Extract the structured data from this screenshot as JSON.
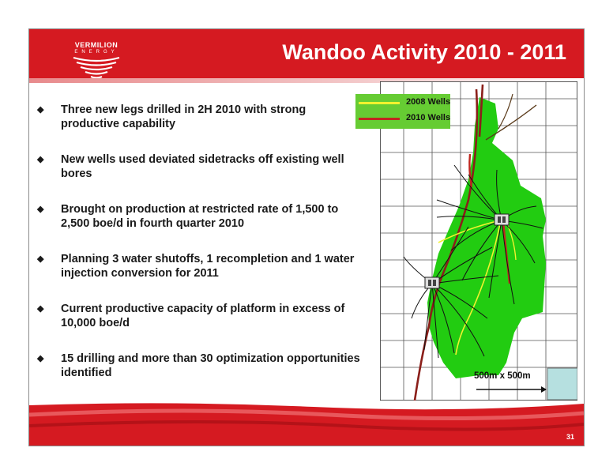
{
  "header": {
    "title": "Wandoo Activity 2010 - 2011",
    "logo_name": "VERMILION",
    "logo_sub": "ENERGY"
  },
  "bullets": [
    {
      "text": "Three new legs drilled in 2H 2010 with strong productive capability"
    },
    {
      "text": "New wells used deviated sidetracks off existing well bores"
    },
    {
      "text": "Brought on production at restricted rate of 1,500 to 2,500 boe/d in fourth quarter 2010"
    },
    {
      "text": "Planning 3 water shutoffs, 1 recompletion and 1 water injection conversion for 2011"
    },
    {
      "text": "Current productive capacity of platform in excess of 10,000 boe/d"
    },
    {
      "text": "15 drilling and more than 30 optimization opportunities identified"
    }
  ],
  "bullet_glyph": "◆",
  "map": {
    "legend": [
      {
        "label": "2008 Wells",
        "color": "#f2f22e"
      },
      {
        "label": "2010 Wells",
        "color": "#c0271f"
      }
    ],
    "scale_label": "500m x 500m",
    "field_color": "#22cc11",
    "platform_icon": "oil-platform-icon"
  },
  "footer": {
    "page_number": "31"
  },
  "colors": {
    "brand_red": "#d51a21"
  }
}
